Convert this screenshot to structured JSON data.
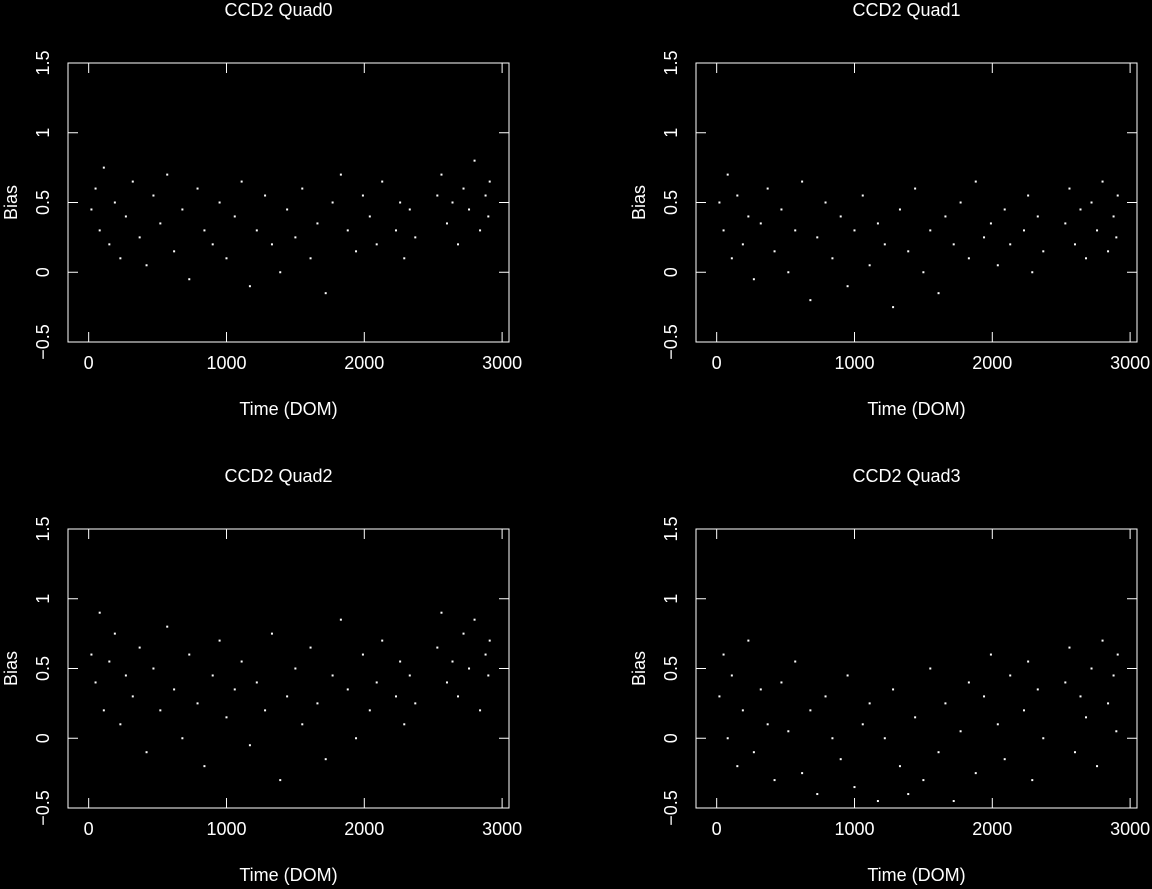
{
  "chart_data": [
    {
      "type": "scatter",
      "title": "CCD2 Quad0",
      "xlabel": "Time (DOM)",
      "ylabel": "Bias",
      "color": "#ffffff",
      "xlim": [
        -150,
        3050
      ],
      "ylim": [
        -0.5,
        1.5
      ],
      "xticks": [
        0,
        1000,
        2000,
        3000
      ],
      "yticks": [
        {
          "value": -0.5,
          "label": "−0.5"
        },
        0,
        0.5,
        1,
        1.5
      ],
      "x": [
        20,
        50,
        80,
        110,
        150,
        190,
        230,
        270,
        320,
        370,
        420,
        470,
        520,
        570,
        620,
        680,
        730,
        790,
        840,
        900,
        950,
        1000,
        1060,
        1110,
        1170,
        1220,
        1280,
        1330,
        1390,
        1440,
        1500,
        1550,
        1610,
        1660,
        1720,
        1770,
        1830,
        1880,
        1940,
        1990,
        2040,
        2090,
        2130,
        2230,
        2260,
        2290,
        2330,
        2370,
        2530,
        2560,
        2600,
        2640,
        2680,
        2720,
        2760,
        2800,
        2840,
        2880,
        2900,
        2910
      ],
      "values": [
        0.45,
        0.6,
        0.3,
        0.75,
        0.2,
        0.5,
        0.1,
        0.4,
        0.65,
        0.25,
        0.05,
        0.55,
        0.35,
        0.7,
        0.15,
        0.45,
        -0.05,
        0.6,
        0.3,
        0.2,
        0.5,
        0.1,
        0.4,
        0.65,
        -0.1,
        0.3,
        0.55,
        0.2,
        0.0,
        0.45,
        0.25,
        0.6,
        0.1,
        0.35,
        -0.15,
        0.5,
        0.7,
        0.3,
        0.15,
        0.55,
        0.4,
        0.2,
        0.65,
        0.3,
        0.5,
        0.1,
        0.45,
        0.25,
        0.55,
        0.7,
        0.35,
        0.5,
        0.2,
        0.6,
        0.45,
        0.8,
        0.3,
        0.55,
        0.4,
        0.65
      ]
    },
    {
      "type": "scatter",
      "title": "CCD2 Quad1",
      "xlabel": "Time (DOM)",
      "ylabel": "Bias",
      "color": "#ffffff",
      "xlim": [
        -150,
        3050
      ],
      "ylim": [
        -0.5,
        1.5
      ],
      "xticks": [
        0,
        1000,
        2000,
        3000
      ],
      "yticks": [
        {
          "value": -0.5,
          "label": "−0.5"
        },
        0,
        0.5,
        1,
        1.5
      ],
      "x": [
        20,
        50,
        80,
        110,
        150,
        190,
        230,
        270,
        320,
        370,
        420,
        470,
        520,
        570,
        620,
        680,
        730,
        790,
        840,
        900,
        950,
        1000,
        1060,
        1110,
        1170,
        1220,
        1280,
        1330,
        1390,
        1440,
        1500,
        1550,
        1610,
        1660,
        1720,
        1770,
        1830,
        1880,
        1940,
        1990,
        2040,
        2090,
        2130,
        2230,
        2260,
        2290,
        2330,
        2370,
        2530,
        2560,
        2600,
        2640,
        2680,
        2720,
        2760,
        2800,
        2840,
        2880,
        2900,
        2910
      ],
      "values": [
        0.5,
        0.3,
        0.7,
        0.1,
        0.55,
        0.2,
        0.4,
        -0.05,
        0.35,
        0.6,
        0.15,
        0.45,
        0.0,
        0.3,
        0.65,
        -0.2,
        0.25,
        0.5,
        0.1,
        0.4,
        -0.1,
        0.3,
        0.55,
        0.05,
        0.35,
        0.2,
        -0.25,
        0.45,
        0.15,
        0.6,
        0.0,
        0.3,
        -0.15,
        0.4,
        0.2,
        0.5,
        0.1,
        0.65,
        0.25,
        0.35,
        0.05,
        0.45,
        0.2,
        0.3,
        0.55,
        0.0,
        0.4,
        0.15,
        0.35,
        0.6,
        0.2,
        0.45,
        0.1,
        0.5,
        0.3,
        0.65,
        0.15,
        0.4,
        0.25,
        0.55
      ]
    },
    {
      "type": "scatter",
      "title": "CCD2 Quad2",
      "xlabel": "Time (DOM)",
      "ylabel": "Bias",
      "color": "#ffffff",
      "xlim": [
        -150,
        3050
      ],
      "ylim": [
        -0.5,
        1.5
      ],
      "xticks": [
        0,
        1000,
        2000,
        3000
      ],
      "yticks": [
        {
          "value": -0.5,
          "label": "−0.5"
        },
        0,
        0.5,
        1,
        1.5
      ],
      "x": [
        20,
        50,
        80,
        110,
        150,
        190,
        230,
        270,
        320,
        370,
        420,
        470,
        520,
        570,
        620,
        680,
        730,
        790,
        840,
        900,
        950,
        1000,
        1060,
        1110,
        1170,
        1220,
        1280,
        1330,
        1390,
        1440,
        1500,
        1550,
        1610,
        1660,
        1720,
        1770,
        1830,
        1880,
        1940,
        1990,
        2040,
        2090,
        2130,
        2230,
        2260,
        2290,
        2330,
        2370,
        2530,
        2560,
        2600,
        2640,
        2680,
        2720,
        2760,
        2800,
        2840,
        2880,
        2900,
        2910
      ],
      "values": [
        0.6,
        0.4,
        0.9,
        0.2,
        0.55,
        0.75,
        0.1,
        0.45,
        0.3,
        0.65,
        -0.1,
        0.5,
        0.2,
        0.8,
        0.35,
        0.0,
        0.6,
        0.25,
        -0.2,
        0.45,
        0.7,
        0.15,
        0.35,
        0.55,
        -0.05,
        0.4,
        0.2,
        0.75,
        -0.3,
        0.3,
        0.5,
        0.1,
        0.65,
        0.25,
        -0.15,
        0.45,
        0.85,
        0.35,
        0.0,
        0.6,
        0.2,
        0.4,
        0.7,
        0.3,
        0.55,
        0.1,
        0.45,
        0.25,
        0.65,
        0.9,
        0.4,
        0.55,
        0.3,
        0.75,
        0.5,
        0.85,
        0.2,
        0.6,
        0.45,
        0.7
      ]
    },
    {
      "type": "scatter",
      "title": "CCD2 Quad3",
      "xlabel": "Time (DOM)",
      "ylabel": "Bias",
      "color": "#ffffff",
      "xlim": [
        -150,
        3050
      ],
      "ylim": [
        -0.5,
        1.5
      ],
      "xticks": [
        0,
        1000,
        2000,
        3000
      ],
      "yticks": [
        {
          "value": -0.5,
          "label": "−0.5"
        },
        0,
        0.5,
        1,
        1.5
      ],
      "x": [
        20,
        50,
        80,
        110,
        150,
        190,
        230,
        270,
        320,
        370,
        420,
        470,
        520,
        570,
        620,
        680,
        730,
        790,
        840,
        900,
        950,
        1000,
        1060,
        1110,
        1170,
        1220,
        1280,
        1330,
        1390,
        1440,
        1500,
        1550,
        1610,
        1660,
        1720,
        1770,
        1830,
        1880,
        1940,
        1990,
        2040,
        2090,
        2130,
        2230,
        2260,
        2290,
        2330,
        2370,
        2530,
        2560,
        2600,
        2640,
        2680,
        2720,
        2760,
        2800,
        2840,
        2880,
        2900,
        2910
      ],
      "values": [
        0.3,
        0.6,
        0.0,
        0.45,
        -0.2,
        0.2,
        0.7,
        -0.1,
        0.35,
        0.1,
        -0.3,
        0.4,
        0.05,
        0.55,
        -0.25,
        0.2,
        -0.4,
        0.3,
        0.0,
        -0.15,
        0.45,
        -0.35,
        0.1,
        0.25,
        -0.45,
        0.0,
        0.35,
        -0.2,
        -0.4,
        0.15,
        -0.3,
        0.5,
        -0.1,
        0.25,
        -0.45,
        0.05,
        0.4,
        -0.25,
        0.3,
        0.6,
        0.1,
        -0.15,
        0.45,
        0.2,
        0.55,
        -0.3,
        0.35,
        0.0,
        0.4,
        0.65,
        -0.1,
        0.3,
        0.15,
        0.5,
        -0.2,
        0.7,
        0.25,
        0.45,
        0.05,
        0.6
      ]
    }
  ]
}
